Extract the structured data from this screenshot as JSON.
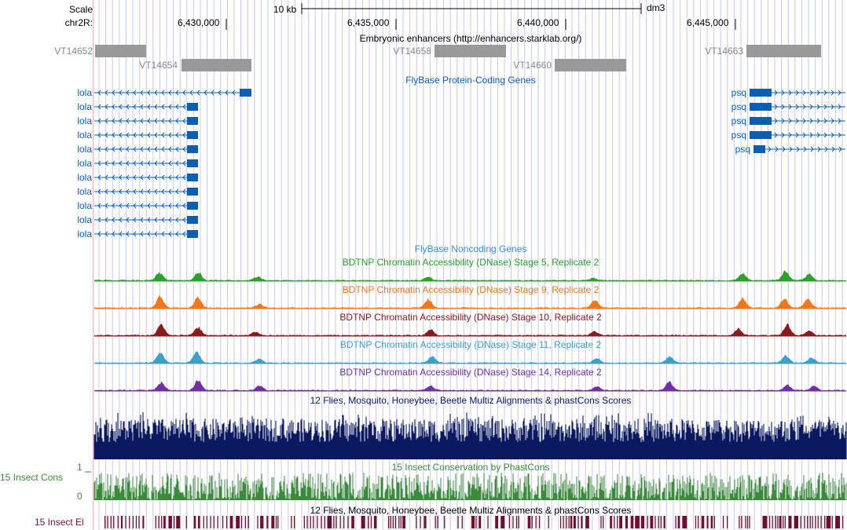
{
  "ruler": {
    "scale_label": "Scale",
    "scale_bar_text": "10 kb",
    "assembly": "dm3",
    "chrom_label": "chr2R:",
    "positions": [
      "6,430,000",
      "6,435,000",
      "6,440,000",
      "6,445,000"
    ]
  },
  "tracks": {
    "enhancers": {
      "title": "Embryonic enhancers (http://enhancers.starklab.org/)",
      "items": [
        "VT14652",
        "VT14654",
        "VT14658",
        "VT14660",
        "VT14663"
      ]
    },
    "flybase_coding": {
      "title": "FlyBase Protein-Coding Genes",
      "lola_label": "lola",
      "psq_label": "psq",
      "lola_count": 11,
      "psq_count": 5
    },
    "flybase_noncoding": {
      "title": "FlyBase Noncoding Genes"
    },
    "dnase": [
      {
        "title": "BDTNP Chromatin Accessibility (DNase) Stage 5, Replicate 2",
        "color": "#2ca02c"
      },
      {
        "title": "BDTNP Chromatin Accessibility (DNase) Stage 9, Replicate 2",
        "color": "#f07818"
      },
      {
        "title": "BDTNP Chromatin Accessibility (DNase) Stage 10, Replicate 2",
        "color": "#8b1a1a"
      },
      {
        "title": "BDTNP Chromatin Accessibility (DNase) Stage 11, Replicate 2",
        "color": "#3ca0c8"
      },
      {
        "title": "BDTNP Chromatin Accessibility (DNase) Stage 14, Replicate 2",
        "color": "#7030a0"
      }
    ],
    "multiz": {
      "title": "12 Flies, Mosquito, Honeybee, Beetle Multiz Alignments & phastCons Scores",
      "color": "#0b1a60"
    },
    "insect_cons": {
      "title": "15 Insect Conservation by PhastCons",
      "left_label": "15 Insect Cons",
      "axis_top": "1",
      "axis_bottom": "0",
      "color": "#3c8a3c"
    },
    "insect_el": {
      "title": "12 Flies, Mosquito, Honeybee, Beetle Multiz Alignments & phastCons Scores",
      "left_label": "15 Insect El",
      "color": "#701030"
    }
  },
  "colors": {
    "gene_blue": "#0a5fb4",
    "enhancer_gray": "#999999",
    "grid_blue": "#c8c8f0",
    "noncoding_blue": "#3a8ed8"
  }
}
